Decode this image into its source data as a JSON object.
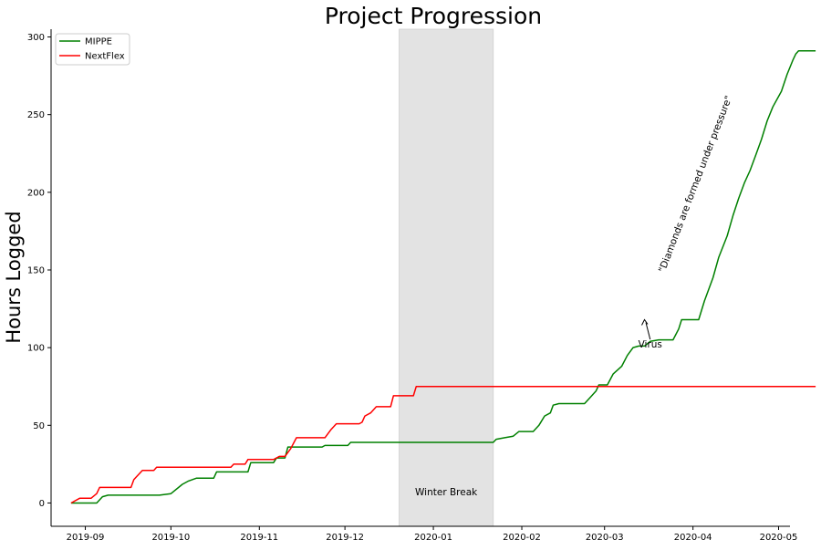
{
  "chart_data": {
    "type": "line",
    "title": "Project Progression",
    "xlabel": "",
    "ylabel": "Hours Logged",
    "xlim": [
      "2019-08-20",
      "2020-05-05"
    ],
    "ylim": [
      -15,
      305
    ],
    "x_ticks": [
      "2019-09",
      "2019-10",
      "2019-11",
      "2019-12",
      "2020-01",
      "2020-02",
      "2020-03",
      "2020-04",
      "2020-05"
    ],
    "y_ticks": [
      0,
      50,
      100,
      150,
      200,
      250,
      300
    ],
    "grid": false,
    "legend_position": "top-left",
    "shaded_region": {
      "start": "2019-12-20",
      "end": "2020-01-22",
      "label": "Winter Break",
      "color": "#e3e3e3"
    },
    "annotations": [
      {
        "text": "Virus",
        "point": {
          "x": "2020-03-15",
          "y": 118
        },
        "text_at": {
          "x": "2020-03-17",
          "y": 100
        }
      },
      {
        "text": "\"Diamonds are formed under pressure\"",
        "at": {
          "x": "2020-03-22",
          "y": 148
        }
      }
    ],
    "series": [
      {
        "name": "MIPPE",
        "color": "#008000",
        "points": [
          [
            "2019-08-27",
            0
          ],
          [
            "2019-09-05",
            0
          ],
          [
            "2019-09-07",
            4
          ],
          [
            "2019-09-09",
            5
          ],
          [
            "2019-09-27",
            5
          ],
          [
            "2019-10-01",
            6
          ],
          [
            "2019-10-05",
            12
          ],
          [
            "2019-10-07",
            14
          ],
          [
            "2019-10-10",
            16
          ],
          [
            "2019-10-16",
            16
          ],
          [
            "2019-10-17",
            20
          ],
          [
            "2019-10-28",
            20
          ],
          [
            "2019-10-29",
            26
          ],
          [
            "2019-11-06",
            26
          ],
          [
            "2019-11-07",
            29
          ],
          [
            "2019-11-10",
            29
          ],
          [
            "2019-11-11",
            36
          ],
          [
            "2019-11-23",
            36
          ],
          [
            "2019-11-24",
            37
          ],
          [
            "2019-12-02",
            37
          ],
          [
            "2019-12-03",
            39
          ],
          [
            "2020-01-22",
            39
          ],
          [
            "2020-01-23",
            41
          ],
          [
            "2020-01-26",
            42
          ],
          [
            "2020-01-29",
            43
          ],
          [
            "2020-01-31",
            46
          ],
          [
            "2020-02-05",
            46
          ],
          [
            "2020-02-07",
            50
          ],
          [
            "2020-02-09",
            56
          ],
          [
            "2020-02-11",
            58
          ],
          [
            "2020-02-12",
            63
          ],
          [
            "2020-02-14",
            64
          ],
          [
            "2020-02-23",
            64
          ],
          [
            "2020-02-25",
            68
          ],
          [
            "2020-02-27",
            72
          ],
          [
            "2020-02-28",
            76
          ],
          [
            "2020-03-02",
            76
          ],
          [
            "2020-03-04",
            83
          ],
          [
            "2020-03-07",
            88
          ],
          [
            "2020-03-09",
            95
          ],
          [
            "2020-03-11",
            100
          ],
          [
            "2020-03-13",
            101
          ],
          [
            "2020-03-15",
            101
          ],
          [
            "2020-03-17",
            104
          ],
          [
            "2020-03-20",
            105
          ],
          [
            "2020-03-25",
            105
          ],
          [
            "2020-03-27",
            112
          ],
          [
            "2020-03-28",
            118
          ],
          [
            "2020-04-03",
            118
          ],
          [
            "2020-04-05",
            130
          ],
          [
            "2020-04-08",
            145
          ],
          [
            "2020-04-10",
            158
          ],
          [
            "2020-04-13",
            172
          ],
          [
            "2020-04-15",
            185
          ],
          [
            "2020-04-17",
            196
          ],
          [
            "2020-04-19",
            206
          ],
          [
            "2020-04-21",
            214
          ],
          [
            "2020-04-23",
            224
          ],
          [
            "2020-04-25",
            234
          ],
          [
            "2020-04-27",
            246
          ],
          [
            "2020-04-29",
            255
          ],
          [
            "2020-05-02",
            265
          ],
          [
            "2020-05-04",
            276
          ],
          [
            "2020-05-06",
            285
          ],
          [
            "2020-05-07",
            289
          ],
          [
            "2020-05-08",
            291
          ],
          [
            "2020-05-14",
            291
          ]
        ]
      },
      {
        "name": "NextFlex",
        "color": "#ff0000",
        "points": [
          [
            "2019-08-27",
            0
          ],
          [
            "2019-08-30",
            3
          ],
          [
            "2019-09-03",
            3
          ],
          [
            "2019-09-05",
            6
          ],
          [
            "2019-09-06",
            10
          ],
          [
            "2019-09-17",
            10
          ],
          [
            "2019-09-18",
            15
          ],
          [
            "2019-09-19",
            17
          ],
          [
            "2019-09-21",
            21
          ],
          [
            "2019-09-25",
            21
          ],
          [
            "2019-09-26",
            23
          ],
          [
            "2019-10-22",
            23
          ],
          [
            "2019-10-23",
            25
          ],
          [
            "2019-10-27",
            25
          ],
          [
            "2019-10-28",
            28
          ],
          [
            "2019-11-06",
            28
          ],
          [
            "2019-11-08",
            30
          ],
          [
            "2019-11-10",
            30
          ],
          [
            "2019-11-12",
            35
          ],
          [
            "2019-11-14",
            42
          ],
          [
            "2019-11-24",
            42
          ],
          [
            "2019-11-26",
            47
          ],
          [
            "2019-11-28",
            51
          ],
          [
            "2019-12-06",
            51
          ],
          [
            "2019-12-07",
            52
          ],
          [
            "2019-12-08",
            56
          ],
          [
            "2019-12-10",
            58
          ],
          [
            "2019-12-12",
            62
          ],
          [
            "2019-12-17",
            62
          ],
          [
            "2019-12-18",
            69
          ],
          [
            "2019-12-25",
            69
          ],
          [
            "2019-12-26",
            75
          ],
          [
            "2020-05-14",
            75
          ]
        ]
      }
    ]
  }
}
